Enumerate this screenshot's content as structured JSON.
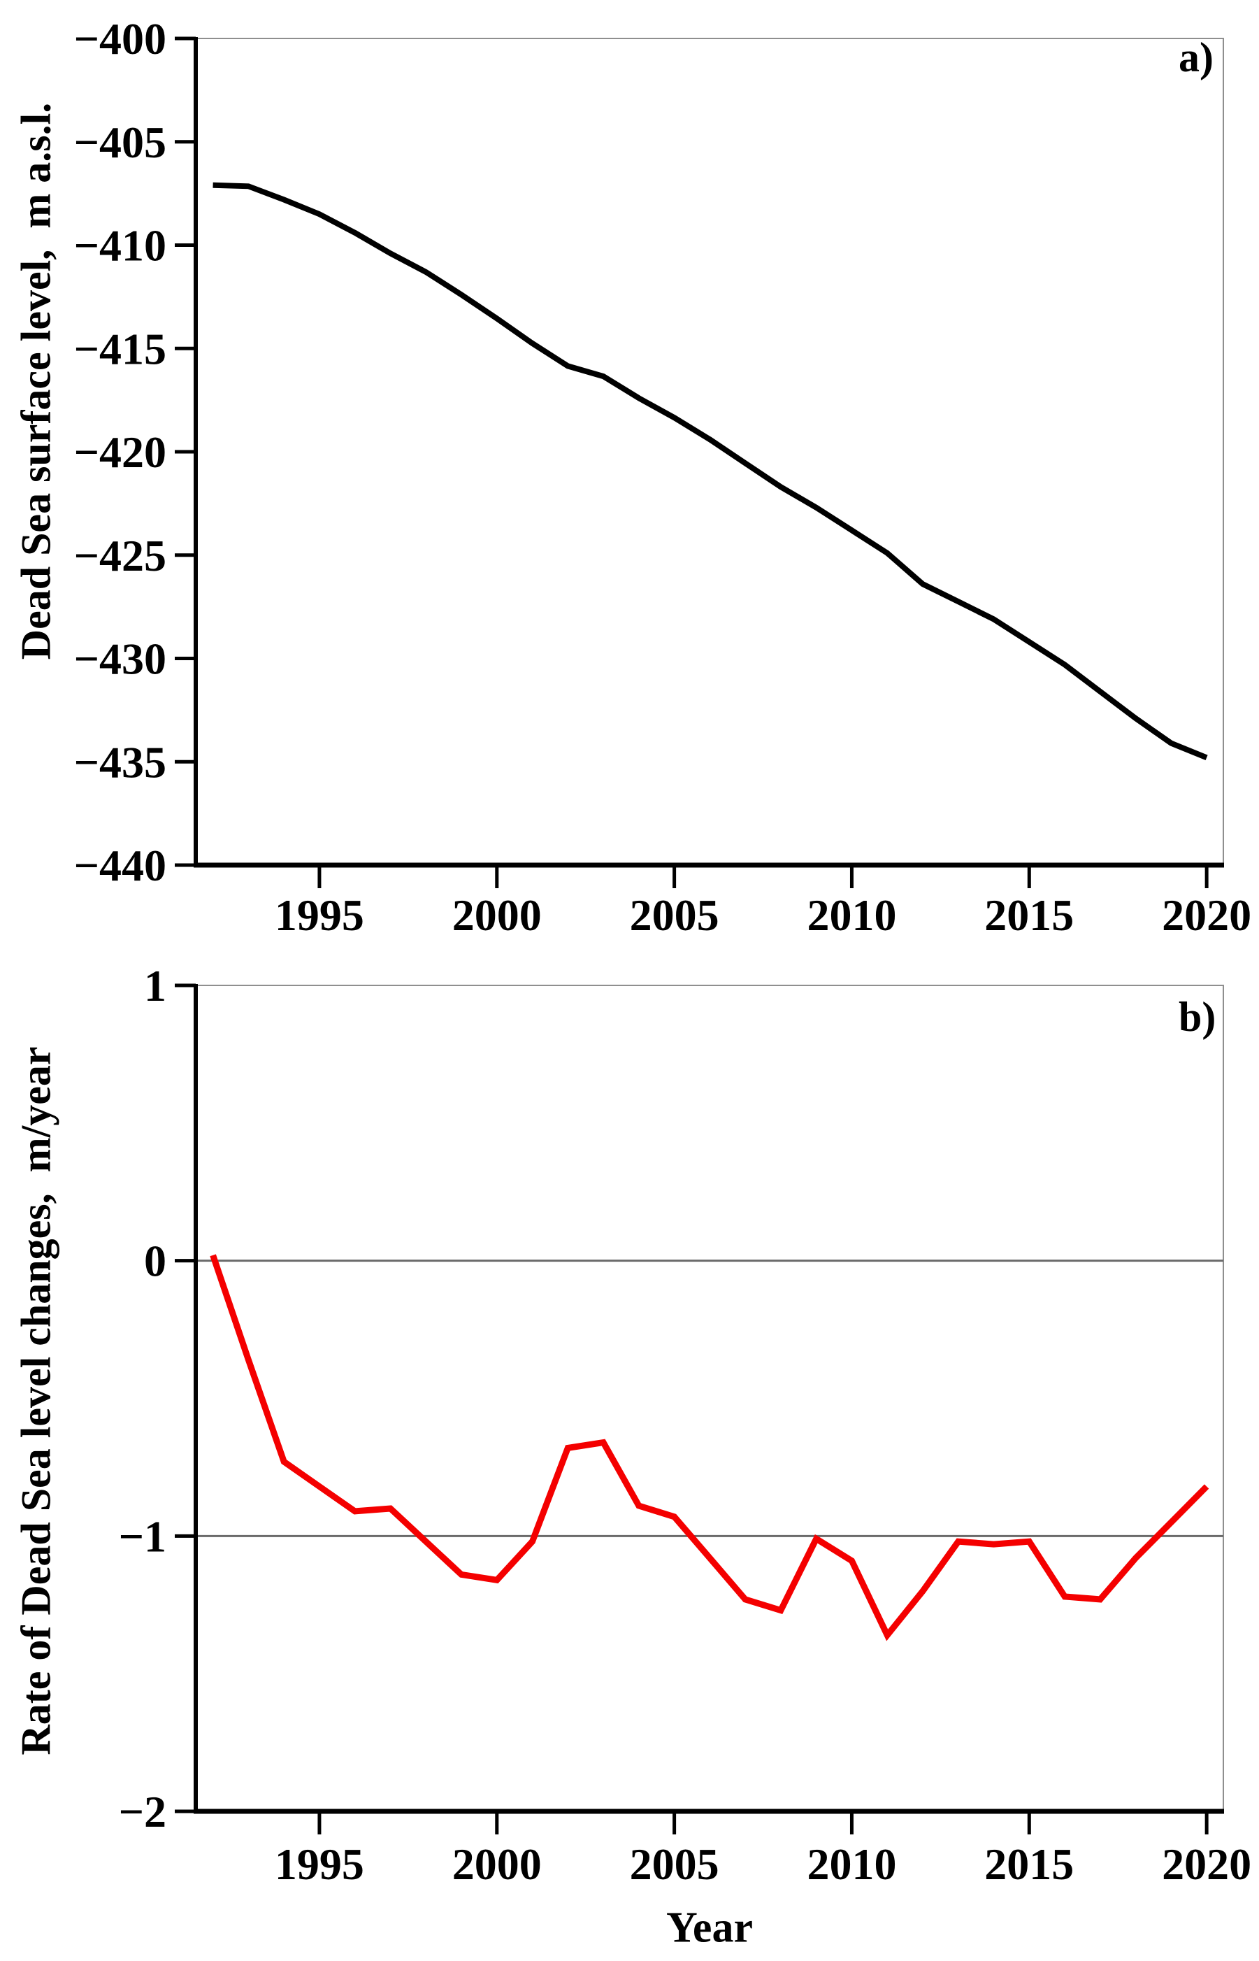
{
  "figure": {
    "x_axis_title": "Year"
  },
  "chart_data": [
    {
      "panel": "a",
      "type": "line",
      "panel_label": "a)",
      "ylabel": "Dead Sea surface level,  m a.s.l.",
      "xlabel": "Year",
      "line_color": "#000000",
      "line_width": 8,
      "grid": false,
      "legend": "none",
      "xlim": [
        1991.515,
        2020.47
      ],
      "ylim": [
        -440,
        -400
      ],
      "xticks": [
        1995,
        2000,
        2005,
        2010,
        2015,
        2020
      ],
      "yticks": [
        -400,
        -405,
        -410,
        -415,
        -420,
        -425,
        -430,
        -435,
        -440
      ],
      "ytick_labels": [
        "−400",
        "−405",
        "−410",
        "−415",
        "−420",
        "−425",
        "−430",
        "−435",
        "−440"
      ],
      "x": [
        1992,
        1993,
        1994,
        1995,
        1996,
        1997,
        1998,
        1999,
        2000,
        2001,
        2002,
        2003,
        2004,
        2005,
        2006,
        2007,
        2008,
        2009,
        2010,
        2011,
        2012,
        2013,
        2014,
        2015,
        2016,
        2017,
        2018,
        2019,
        2020
      ],
      "values": [
        -407.1,
        -407.15,
        -407.8,
        -408.5,
        -409.4,
        -410.4,
        -411.3,
        -412.4,
        -413.55,
        -414.75,
        -415.85,
        -416.35,
        -417.4,
        -418.35,
        -419.4,
        -420.55,
        -421.7,
        -422.7,
        -423.8,
        -424.9,
        -426.4,
        -427.25,
        -428.1,
        -429.2,
        -430.3,
        -431.6,
        -432.9,
        -434.1,
        -434.8
      ]
    },
    {
      "panel": "b",
      "type": "line",
      "panel_label": "b)",
      "ylabel": "Rate of Dead Sea level changes,  m/year",
      "xlabel": "Year",
      "line_color": "#f40000",
      "line_width": 9,
      "grid": true,
      "gridlines": [
        0,
        -1
      ],
      "legend": "none",
      "xlim": [
        1991.515,
        2020.47
      ],
      "ylim": [
        -2,
        1
      ],
      "xticks": [
        1995,
        2000,
        2005,
        2010,
        2015,
        2020
      ],
      "yticks": [
        1,
        0,
        -1,
        -2
      ],
      "ytick_labels": [
        "1",
        "0",
        "−1",
        "−2"
      ],
      "x": [
        1992,
        1993,
        1994,
        1995,
        1996,
        1997,
        1998,
        1999,
        2000,
        2001,
        2002,
        2003,
        2004,
        2005,
        2006,
        2007,
        2008,
        2009,
        2010,
        2011,
        2012,
        2013,
        2014,
        2015,
        2016,
        2017,
        2018,
        2019,
        2020
      ],
      "values": [
        0.02,
        -0.36,
        -0.73,
        -0.82,
        -0.91,
        -0.9,
        -1.02,
        -1.14,
        -1.16,
        -1.02,
        -0.68,
        -0.66,
        -0.89,
        -0.93,
        -1.08,
        -1.23,
        -1.27,
        -1.01,
        -1.09,
        -1.36,
        -1.2,
        -1.02,
        -1.03,
        -1.02,
        -1.22,
        -1.23,
        -1.08,
        -0.95,
        -0.82
      ]
    }
  ]
}
